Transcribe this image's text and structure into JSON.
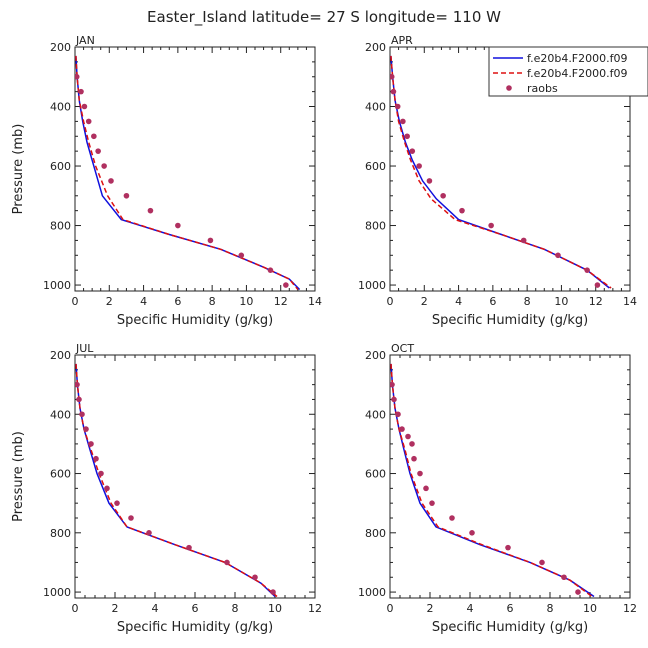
{
  "figure": {
    "title": "Easter_Island  latitude= 27 S longitude= 110 W"
  },
  "legend": {
    "entries": [
      {
        "label": "f.e20b4.F2000.f09",
        "color": "#1010dd",
        "style": "solid"
      },
      {
        "label": "f.e20b4.F2000.f09",
        "color": "#dd1010",
        "style": "dashed"
      },
      {
        "label": "raobs",
        "color": "#b03060",
        "style": "dot"
      }
    ]
  },
  "chart_data": [
    {
      "type": "line",
      "panel": "JAN",
      "xlabel": "Specific Humidity (g/kg)",
      "ylabel": "Pressure (mb)",
      "xlim": [
        0,
        14
      ],
      "ylim": [
        1020,
        200
      ],
      "xticks": [
        0,
        2,
        4,
        6,
        8,
        10,
        12,
        14
      ],
      "yticks": [
        200,
        400,
        600,
        800,
        1000
      ],
      "series": [
        {
          "name": "f.e20b4.F2000.f09",
          "color": "#1010dd",
          "dash": false,
          "x": [
            0.05,
            0.12,
            0.25,
            0.45,
            0.7,
            1.0,
            1.6,
            2.7,
            5.5,
            8.5,
            11.0,
            12.5,
            13.1
          ],
          "y": [
            230,
            300,
            380,
            450,
            520,
            580,
            700,
            780,
            830,
            880,
            940,
            980,
            1015
          ]
        },
        {
          "name": "f.e20b4.F2000.f09",
          "color": "#dd1010",
          "dash": true,
          "x": [
            0.05,
            0.12,
            0.25,
            0.5,
            0.8,
            1.2,
            1.9,
            2.8,
            5.5,
            8.5,
            11.0,
            12.5,
            13.0
          ],
          "y": [
            230,
            300,
            380,
            450,
            520,
            600,
            700,
            780,
            830,
            880,
            940,
            980,
            1015
          ]
        },
        {
          "name": "raobs",
          "color": "#b03060",
          "marker": true,
          "x": [
            0.1,
            0.35,
            0.55,
            0.8,
            1.1,
            1.35,
            1.7,
            2.1,
            3.0,
            4.4,
            6.0,
            7.9,
            9.7,
            11.4,
            12.3
          ],
          "y": [
            300,
            350,
            400,
            450,
            500,
            550,
            600,
            650,
            700,
            750,
            800,
            850,
            900,
            950,
            1000
          ]
        }
      ]
    },
    {
      "type": "line",
      "panel": "APR",
      "xlabel": "Specific Humidity (g/kg)",
      "ylabel": "",
      "xlim": [
        0,
        14
      ],
      "ylim": [
        1020,
        200
      ],
      "xticks": [
        0,
        2,
        4,
        6,
        8,
        10,
        12,
        14
      ],
      "yticks": [
        200,
        400,
        600,
        800,
        1000
      ],
      "series": [
        {
          "name": "f.e20b4.F2000.f09",
          "color": "#1010dd",
          "dash": false,
          "x": [
            0.05,
            0.15,
            0.3,
            0.55,
            0.9,
            1.3,
            1.9,
            2.7,
            4.0,
            6.5,
            9.0,
            11.5,
            12.8
          ],
          "y": [
            230,
            300,
            380,
            450,
            520,
            580,
            650,
            710,
            780,
            830,
            880,
            950,
            1010
          ]
        },
        {
          "name": "f.e20b4.F2000.f09",
          "color": "#dd1010",
          "dash": true,
          "x": [
            0.05,
            0.15,
            0.3,
            0.5,
            0.85,
            1.2,
            1.7,
            2.4,
            3.8,
            6.5,
            9.0,
            11.5,
            12.9
          ],
          "y": [
            230,
            300,
            380,
            450,
            520,
            580,
            650,
            710,
            780,
            830,
            880,
            950,
            1010
          ]
        },
        {
          "name": "raobs",
          "color": "#b03060",
          "marker": true,
          "x": [
            0.1,
            0.2,
            0.45,
            0.75,
            1.0,
            1.3,
            1.7,
            2.3,
            3.1,
            4.2,
            5.9,
            7.8,
            9.8,
            11.5,
            12.1
          ],
          "y": [
            300,
            350,
            400,
            450,
            500,
            550,
            600,
            650,
            700,
            750,
            800,
            850,
            900,
            950,
            1000
          ]
        }
      ]
    },
    {
      "type": "line",
      "panel": "JUL",
      "xlabel": "Specific Humidity (g/kg)",
      "ylabel": "Pressure (mb)",
      "xlim": [
        0,
        12
      ],
      "ylim": [
        1020,
        200
      ],
      "xticks": [
        0,
        2,
        4,
        6,
        8,
        10,
        12
      ],
      "yticks": [
        200,
        400,
        600,
        800,
        1000
      ],
      "series": [
        {
          "name": "f.e20b4.F2000.f09",
          "color": "#1010dd",
          "dash": false,
          "x": [
            0.05,
            0.12,
            0.25,
            0.45,
            0.75,
            1.1,
            1.7,
            2.6,
            5.0,
            7.5,
            9.3,
            10.0
          ],
          "y": [
            230,
            300,
            380,
            450,
            520,
            600,
            700,
            780,
            840,
            900,
            970,
            1015
          ]
        },
        {
          "name": "f.e20b4.F2000.f09",
          "color": "#dd1010",
          "dash": true,
          "x": [
            0.05,
            0.12,
            0.25,
            0.45,
            0.8,
            1.2,
            1.8,
            2.6,
            5.0,
            7.5,
            9.3,
            10.1
          ],
          "y": [
            230,
            300,
            380,
            450,
            520,
            600,
            700,
            780,
            840,
            900,
            970,
            1015
          ]
        },
        {
          "name": "raobs",
          "color": "#b03060",
          "marker": true,
          "x": [
            0.1,
            0.2,
            0.35,
            0.55,
            0.8,
            1.05,
            1.3,
            1.6,
            2.1,
            2.8,
            3.7,
            5.7,
            7.6,
            9.0,
            9.9
          ],
          "y": [
            300,
            350,
            400,
            450,
            500,
            550,
            600,
            650,
            700,
            750,
            800,
            850,
            900,
            950,
            1000
          ]
        }
      ]
    },
    {
      "type": "line",
      "panel": "OCT",
      "xlabel": "Specific Humidity (g/kg)",
      "ylabel": "",
      "xlim": [
        0,
        12
      ],
      "ylim": [
        1020,
        200
      ],
      "xticks": [
        0,
        2,
        4,
        6,
        8,
        10,
        12
      ],
      "yticks": [
        200,
        400,
        600,
        800,
        1000
      ],
      "series": [
        {
          "name": "f.e20b4.F2000.f09",
          "color": "#1010dd",
          "dash": false,
          "x": [
            0.05,
            0.12,
            0.25,
            0.45,
            0.7,
            1.0,
            1.5,
            2.3,
            4.5,
            7.0,
            9.0,
            10.2
          ],
          "y": [
            230,
            300,
            380,
            450,
            520,
            600,
            700,
            780,
            840,
            900,
            960,
            1015
          ]
        },
        {
          "name": "f.e20b4.F2000.f09",
          "color": "#dd1010",
          "dash": true,
          "x": [
            0.05,
            0.12,
            0.25,
            0.45,
            0.75,
            1.05,
            1.6,
            2.4,
            4.6,
            7.0,
            9.0,
            10.1
          ],
          "y": [
            230,
            300,
            380,
            450,
            520,
            600,
            700,
            780,
            840,
            900,
            960,
            1015
          ]
        },
        {
          "name": "raobs",
          "color": "#b03060",
          "marker": true,
          "x": [
            0.1,
            0.2,
            0.4,
            0.6,
            0.9,
            1.1,
            1.2,
            1.5,
            1.8,
            2.1,
            3.1,
            4.1,
            5.9,
            7.6,
            8.7,
            9.4
          ],
          "y": [
            300,
            350,
            400,
            450,
            475,
            500,
            550,
            600,
            650,
            700,
            750,
            800,
            850,
            900,
            950,
            1000
          ]
        }
      ]
    }
  ]
}
